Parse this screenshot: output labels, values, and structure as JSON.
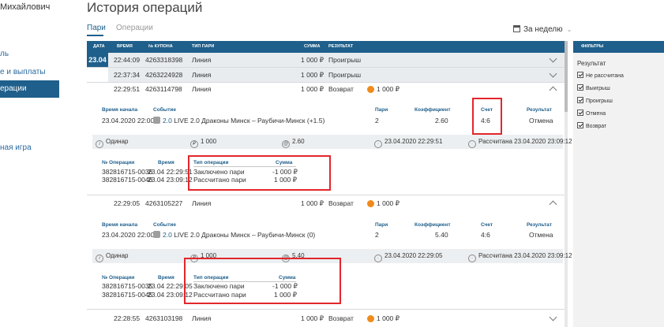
{
  "sidebar": {
    "user_name": "Михайлович",
    "items": [
      "ль",
      "е и выплаты",
      "ерации",
      "ная игра"
    ]
  },
  "header": {
    "title": "История операций",
    "tabs": [
      "Пари",
      "Операции"
    ],
    "date_filter": "За неделю"
  },
  "table": {
    "columns": [
      "ДАТА",
      "ВРЕМЯ",
      "№ КУПОНА",
      "ТИП ПАРИ",
      "СУММА",
      "РЕЗУЛЬТАТ"
    ],
    "date": "23.04",
    "rows": [
      {
        "time": "22:44:09",
        "coupon": "4263318398",
        "type": "Линия",
        "sum": "1 000 ₽",
        "result": "Проигрыш"
      },
      {
        "time": "22:37:34",
        "coupon": "4263224928",
        "type": "Линия",
        "sum": "1 000 ₽",
        "result": "Проигрыш"
      },
      {
        "time": "22:29:51",
        "coupon": "4263114798",
        "type": "Линия",
        "sum": "1 000 ₽",
        "result": "Возврат",
        "payout": "1 000 ₽"
      },
      {
        "time": "22:29:05",
        "coupon": "4263105227",
        "type": "Линия",
        "sum": "1 000 ₽",
        "result": "Возврат",
        "payout": "1 000 ₽"
      },
      {
        "time": "22:28:55",
        "coupon": "4263103198",
        "type": "Линия",
        "sum": "1 000 ₽",
        "result": "Возврат",
        "payout": "1 000 ₽"
      }
    ]
  },
  "detail_labels": {
    "start": "Время начала",
    "event": "Событие",
    "bet": "Пари",
    "coef": "Коэффициент",
    "score": "Счет",
    "result": "Результат",
    "op_no": "№ Операции",
    "op_time": "Время",
    "op_type": "Тип операции",
    "op_sum": "Сумма"
  },
  "details": [
    {
      "start": "23.04.2020 22:00",
      "event_num": "2.0",
      "event": "LIVE 2.0 Драконы Минск – Раубичи-Минск (+1.5)",
      "bet": "2",
      "coef": "2.60",
      "score": "4:6",
      "result": "Отмена",
      "bar": {
        "kind": "Одинар",
        "amount": "1 000",
        "coef": "2.60",
        "time": "23.04.2020 22:29:51",
        "settled": "Рассчитана 23.04.2020 23:09:12"
      },
      "ops": [
        {
          "no": "382816715-0036",
          "time": "23.04 22:29:51",
          "type": "Заключено пари",
          "sum": "-1 000 ₽"
        },
        {
          "no": "382816715-0046",
          "time": "23.04 23:09:12",
          "type": "Рассчитано пари",
          "sum": "1 000 ₽"
        }
      ]
    },
    {
      "start": "23.04.2020 22:00",
      "event_num": "2.0",
      "event": "LIVE 2.0 Драконы Минск – Раубичи-Минск (0)",
      "bet": "2",
      "coef": "5.40",
      "score": "4:6",
      "result": "Отмена",
      "bar": {
        "kind": "Одинар",
        "amount": "1 000",
        "coef": "5.40",
        "time": "23.04.2020 22:29:05",
        "settled": "Рассчитана 23.04.2020 23:09:12"
      },
      "ops": [
        {
          "no": "382816715-0035",
          "time": "23.04 22:29:05",
          "type": "Заключено пари",
          "sum": "-1 000 ₽"
        },
        {
          "no": "382816715-0045",
          "time": "23.04 23:09:12",
          "type": "Рассчитано пари",
          "sum": "1 000 ₽"
        }
      ]
    }
  ],
  "filters": {
    "header": "ФИЛЬТРЫ",
    "title": "Результат",
    "items": [
      "Не рассчитана",
      "Выигрыш",
      "Проигрыш",
      "Отмена",
      "Возврат"
    ]
  },
  "colors": {
    "accent": "#1f5f8b",
    "highlight": "#e3262b",
    "orange": "#f08a1c"
  }
}
